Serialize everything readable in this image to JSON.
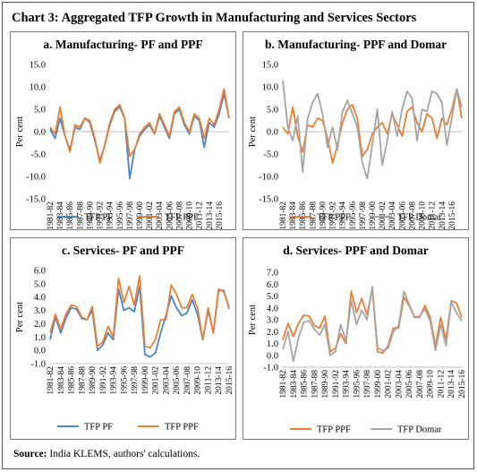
{
  "title": "Chart 3: Aggregated TFP Growth in Manufacturing and Services Sectors",
  "source_label": "Source:",
  "source_text": "India KLEMS, authors' calculations.",
  "colors": {
    "blue": "#4a86c8",
    "orange": "#ed7d31",
    "gray": "#a5a5a5"
  },
  "chart_data": [
    {
      "id": "a",
      "type": "line",
      "title": "a. Manufacturing- PF and PPF",
      "xlabel": "",
      "ylabel": "Per cent",
      "ylim": [
        -15,
        15
      ],
      "ystep": 5,
      "yticks": [
        "-15.0",
        "-10.0",
        "-5.0",
        "0.0",
        "5.0",
        "10.0",
        "15.0"
      ],
      "legend": "bottom",
      "series": [
        {
          "name": "TFP PF",
          "color": "#4a86c8",
          "values": [
            0.5,
            -1.5,
            3.0,
            -1.0,
            -4.0,
            1.0,
            0.5,
            3.0,
            2.0,
            -2.0,
            -6.5,
            -3.0,
            1.5,
            4.5,
            5.5,
            3.0,
            -10.5,
            -4.0,
            -1.0,
            0.5,
            1.5,
            -0.5,
            3.5,
            1.0,
            -1.5,
            4.0,
            5.0,
            1.5,
            -0.5,
            3.5,
            2.5,
            -3.5,
            2.0,
            1.0,
            4.0,
            8.5,
            3.0
          ]
        },
        {
          "name": "TFP PPF",
          "color": "#ed7d31",
          "values": [
            1.0,
            -0.5,
            5.5,
            -1.0,
            -4.5,
            1.5,
            1.0,
            3.0,
            2.5,
            -1.5,
            -7.0,
            -3.0,
            2.0,
            5.0,
            6.0,
            3.0,
            -5.5,
            -4.0,
            -0.5,
            1.0,
            2.0,
            -0.5,
            4.0,
            1.5,
            -1.0,
            4.5,
            5.5,
            2.0,
            0.0,
            4.0,
            3.0,
            -1.5,
            3.0,
            1.5,
            5.0,
            9.5,
            3.0
          ]
        }
      ]
    },
    {
      "id": "b",
      "type": "line",
      "title": "b. Manufacturing- PPF and Domar",
      "xlabel": "",
      "ylabel": "Per cent",
      "ylim": [
        -15,
        15
      ],
      "ystep": 5,
      "yticks": [
        "-15.0",
        "-10.0",
        "-5.0",
        "0.0",
        "5.0",
        "10.0",
        "15.0"
      ],
      "legend": "bottom",
      "series": [
        {
          "name": "TFP PPF",
          "color": "#ed7d31",
          "values": [
            1.0,
            -0.5,
            5.5,
            -1.0,
            -4.5,
            1.5,
            1.0,
            3.0,
            2.5,
            -1.5,
            -7.0,
            -3.0,
            2.0,
            5.0,
            6.0,
            3.0,
            -5.5,
            -4.0,
            -0.5,
            1.0,
            2.0,
            -0.5,
            4.0,
            1.5,
            -1.0,
            4.5,
            5.5,
            2.0,
            0.0,
            4.0,
            3.0,
            -1.5,
            3.0,
            1.5,
            5.0,
            9.5,
            3.0
          ]
        },
        {
          "name": "TFP Domar",
          "color": "#a5a5a5",
          "values": [
            11.5,
            1.0,
            -2.0,
            3.5,
            -9.0,
            3.0,
            6.5,
            8.5,
            4.0,
            -3.5,
            1.0,
            -4.0,
            4.5,
            7.0,
            4.0,
            1.0,
            -7.0,
            -10.5,
            -3.0,
            5.0,
            -7.5,
            -2.0,
            4.5,
            -1.0,
            5.0,
            9.0,
            7.5,
            -2.0,
            5.0,
            4.5,
            9.0,
            8.5,
            6.5,
            -3.0,
            3.0,
            9.5,
            5.5
          ]
        }
      ]
    },
    {
      "id": "c",
      "type": "line",
      "title": "c. Services- PF and PPF",
      "xlabel": "",
      "ylabel": "Per cent",
      "ylim": [
        -1,
        6
      ],
      "ystep": 1,
      "yticks": [
        "-1.0",
        "0.0",
        "1.0",
        "2.0",
        "3.0",
        "4.0",
        "5.0",
        "6.0"
      ],
      "legend": "bottom",
      "series": [
        {
          "name": "TFP PF",
          "color": "#4a86c8",
          "values": [
            0.8,
            2.5,
            1.3,
            2.4,
            3.2,
            3.1,
            2.4,
            2.3,
            3.0,
            0.0,
            0.4,
            1.3,
            0.8,
            4.6,
            3.0,
            3.2,
            2.9,
            4.8,
            -0.3,
            -0.5,
            -0.2,
            1.3,
            2.6,
            4.1,
            3.2,
            2.6,
            2.8,
            3.8,
            2.7,
            0.8,
            3.0,
            1.3,
            4.5,
            4.5,
            3.1
          ]
        },
        {
          "name": "TFP PPF",
          "color": "#ed7d31",
          "values": [
            1.3,
            2.7,
            1.6,
            2.7,
            3.4,
            3.3,
            2.5,
            2.3,
            3.3,
            0.3,
            0.6,
            1.8,
            1.0,
            5.4,
            3.6,
            4.8,
            3.4,
            5.6,
            0.3,
            0.2,
            0.8,
            2.3,
            2.3,
            4.9,
            4.2,
            3.2,
            3.2,
            4.2,
            3.2,
            0.8,
            3.2,
            1.3,
            4.6,
            4.4,
            3.2
          ]
        }
      ]
    },
    {
      "id": "d",
      "type": "line",
      "title": "d. Services- PPF and Domar",
      "xlabel": "",
      "ylabel": "Per cent",
      "ylim": [
        -1,
        7
      ],
      "ystep": 1,
      "yticks": [
        "-1.0",
        "0.0",
        "1.0",
        "2.0",
        "3.0",
        "4.0",
        "5.0",
        "6.0",
        "7.0"
      ],
      "legend": "bottom",
      "series": [
        {
          "name": "TFP PPF",
          "color": "#ed7d31",
          "values": [
            1.3,
            2.7,
            1.6,
            2.7,
            3.4,
            3.3,
            2.5,
            2.3,
            3.3,
            0.3,
            0.6,
            1.8,
            1.0,
            5.4,
            3.6,
            4.8,
            3.4,
            5.6,
            0.3,
            0.2,
            0.8,
            2.3,
            2.3,
            4.9,
            4.2,
            3.2,
            3.2,
            4.2,
            3.2,
            0.8,
            3.2,
            1.3,
            4.6,
            4.4,
            3.2
          ]
        },
        {
          "name": "TFP Domar",
          "color": "#a5a5a5",
          "values": [
            0.5,
            2.0,
            -0.5,
            1.5,
            2.8,
            2.9,
            2.2,
            1.7,
            2.6,
            0.0,
            0.3,
            2.6,
            1.2,
            4.6,
            2.6,
            3.8,
            3.0,
            5.8,
            0.6,
            0.4,
            0.6,
            2.0,
            2.5,
            5.4,
            4.3,
            3.2,
            3.3,
            3.9,
            2.9,
            0.4,
            2.6,
            0.8,
            4.5,
            3.6,
            2.9
          ]
        }
      ]
    }
  ],
  "x_labels": [
    "1981-82",
    "1983-84",
    "1985-86",
    "1987-88",
    "1989-90",
    "1991-92",
    "1993-94",
    "1995-96",
    "1997-98",
    "1999-00",
    "2001-02",
    "2003-04",
    "2005-06",
    "2007-08",
    "2009-10",
    "2011-12",
    "2013-14",
    "2015-16"
  ]
}
